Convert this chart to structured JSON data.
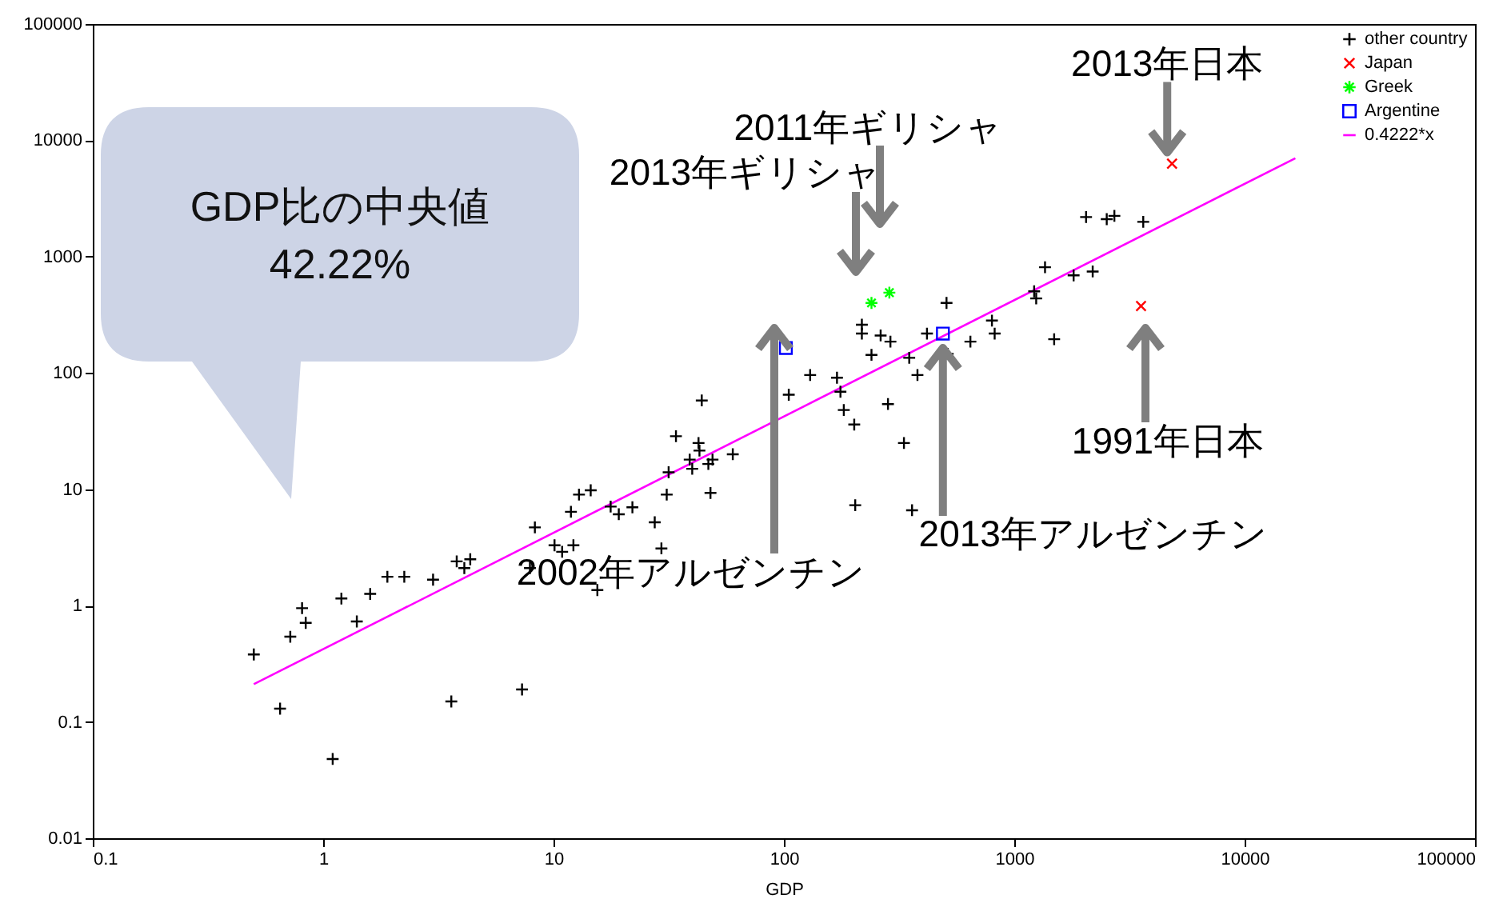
{
  "chart_data": {
    "type": "scatter",
    "xlabel": "GDP",
    "xlim": [
      0.1,
      100000
    ],
    "xticks": [
      0.1,
      1,
      10,
      100,
      1000,
      10000,
      100000
    ],
    "ylim": [
      0.01,
      100000
    ],
    "yticks": [
      0.01,
      0.1,
      1,
      10,
      100,
      1000,
      10000,
      100000
    ],
    "log": "xy",
    "grid": false,
    "legend": "top right",
    "series": [
      {
        "name": "other country",
        "color": "#000000",
        "marker": "cross",
        "x": [
          0.5,
          0.65,
          0.72,
          0.81,
          0.84,
          1.1,
          1.2,
          1.4,
          1.6,
          1.9,
          2.25,
          3,
          3.6,
          3.8,
          4.1,
          4.35,
          7.3,
          7.9,
          8.3,
          10.1,
          10.9,
          12.2,
          11.9,
          12.9,
          14.5,
          15.5,
          17.7,
          19.2,
          22,
          27.5,
          29.4,
          31,
          31.6,
          34,
          39,
          40,
          42.6,
          43,
          44,
          47,
          48,
          49,
          60,
          105,
          130,
          170,
          176,
          182,
          202,
          204,
          218,
          218,
          240,
          263,
          283,
          290,
          332,
          350,
          360,
          380,
          418,
          508,
          514,
          645,
          800,
          822,
          1220,
          1245,
          1360,
          1490,
          1810,
          2050,
          2190,
          2520,
          2720,
          3630
        ],
        "values": [
          0.38,
          0.13,
          0.54,
          0.95,
          0.71,
          0.048,
          1.15,
          0.73,
          1.26,
          1.77,
          1.77,
          1.67,
          0.15,
          2.4,
          2.1,
          2.5,
          0.19,
          2.1,
          4.7,
          3.3,
          2.9,
          3.3,
          6.4,
          9,
          9.8,
          1.36,
          7.1,
          6.1,
          7,
          5.2,
          3.1,
          9,
          14,
          28.6,
          18,
          15,
          25,
          21.5,
          58,
          16.5,
          9.3,
          18,
          20,
          65,
          96,
          91,
          69,
          48,
          36,
          7.3,
          260,
          218,
          143,
          210,
          54,
          186,
          25,
          135,
          6.6,
          96,
          218,
          400,
          146,
          186,
          282,
          218,
          503,
          437,
          810,
          195,
          690,
          2190,
          745,
          2100,
          2240,
          1990
        ]
      },
      {
        "name": "Japan",
        "color": "#ff0000",
        "marker": "x",
        "x": [
          3550,
          4840
        ],
        "values": [
          376,
          6300
        ]
      },
      {
        "name": "Greek",
        "color": "#00ff00",
        "x": [
          240,
          287
        ],
        "values": [
          400,
          490
        ]
      },
      {
        "name": "Argentine",
        "color": "#0000ff",
        "marker": "square",
        "x": [
          102,
          490
        ],
        "values": [
          164,
          218
        ]
      },
      {
        "name": "0.4222*x",
        "type": "line",
        "color": "#ff00ff",
        "x": [
          0.5,
          16600
        ],
        "values": [
          0.2111,
          7009
        ]
      }
    ],
    "annotations": [
      {
        "text": "2013年日本",
        "x": 4840,
        "y": 6300
      },
      "2011年ギリシャ",
      "2013年ギリシャ",
      "1991年日本",
      "2002年アルゼンチン",
      {
        "text": "2013年アルゼンチン",
        "x": 490,
        "y": 218
      },
      "GDP比の中央値\n42.22%"
    ]
  }
}
